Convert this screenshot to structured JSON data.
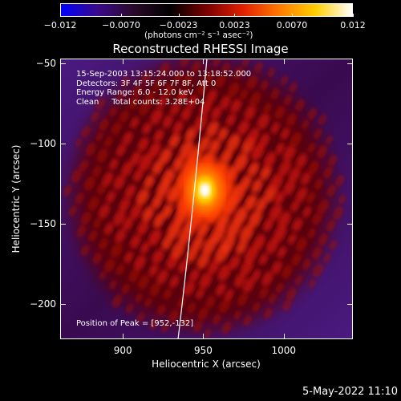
{
  "colorbar": {
    "ticks": [
      "−0.012",
      "−0.0070",
      "−0.0023",
      "0.0023",
      "0.0070",
      "0.012"
    ],
    "tick_values": [
      -0.012,
      -0.007,
      -0.0023,
      0.0023,
      0.007,
      0.012
    ],
    "range": [
      -0.012,
      0.012
    ],
    "colors": [
      "#0000ff",
      "#3a0a8a",
      "#2a0a2a",
      "#000000",
      "#7a0000",
      "#e02000",
      "#ff7a00",
      "#ffd000",
      "#ffffff"
    ]
  },
  "units_label": "(photons cm⁻² s⁻¹ asec⁻²)",
  "title": "Reconstructed RHESSI Image",
  "annotations": {
    "time_range": "15-Sep-2003 13:15:24.000 to 13:18:52.000",
    "detectors": "Detectors: 3F 4F 5F 6F 7F 8F, Att 0",
    "energy": "Energy Range: 6.0 - 12.0 keV",
    "clean": "Clean     Total counts: 3.28E+04",
    "peak": "Position of Peak = [952,-132]"
  },
  "axes": {
    "xlabel": "Heliocentric X (arcsec)",
    "ylabel": "Heliocentric Y (arcsec)",
    "x_ticks": [
      "900",
      "950",
      "1000"
    ],
    "x_tick_values": [
      900,
      950,
      1000
    ],
    "y_ticks": [
      "−50",
      "−100",
      "−150",
      "−200"
    ],
    "y_tick_values": [
      -50,
      -100,
      -150,
      -200
    ],
    "xlim": [
      861,
      1043
    ],
    "ylim": [
      -222,
      -47
    ]
  },
  "peak_position": [
    952,
    -132
  ],
  "footer_date": "5-May-2022 11:10"
}
